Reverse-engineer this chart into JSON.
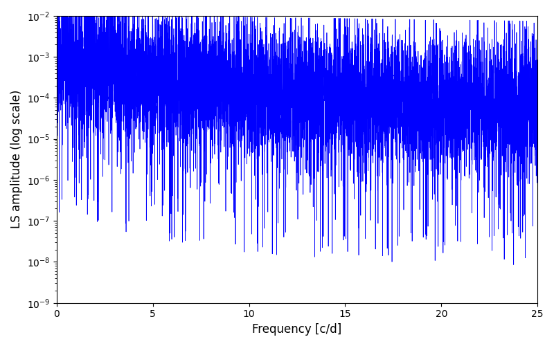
{
  "title": "",
  "xlabel": "Frequency [c/d]",
  "ylabel": "LS amplitude (log scale)",
  "xlim": [
    0,
    25
  ],
  "ylim": [
    1e-09,
    0.01
  ],
  "yscale": "log",
  "line_color": "#0000ff",
  "line_width": 0.5,
  "figsize": [
    8.0,
    5.0
  ],
  "dpi": 100,
  "freq_max": 25.0,
  "n_points": 8000,
  "seed": 123,
  "background_color": "#ffffff"
}
